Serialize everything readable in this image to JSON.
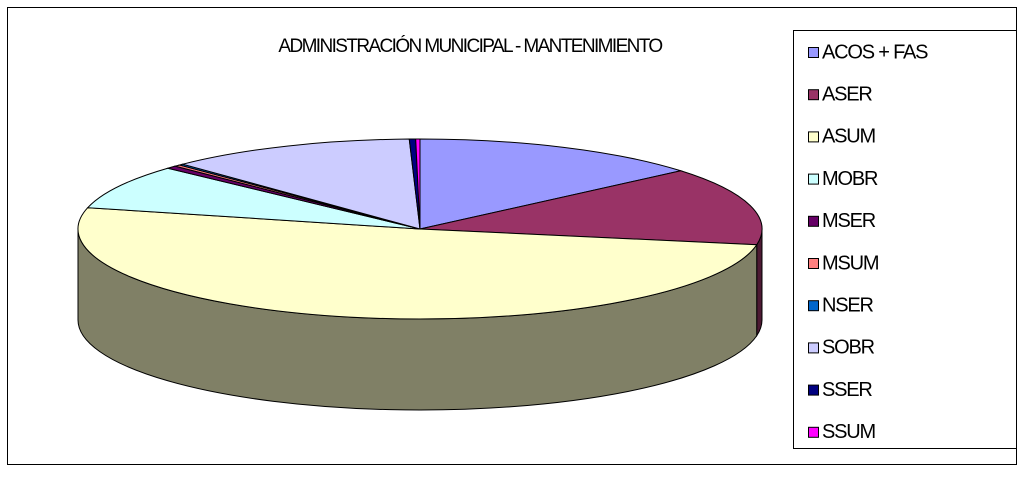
{
  "chart_data": {
    "type": "pie3d",
    "title": "ADMINISTRACIÓN MUNICIPAL - MANTENIMIENTO",
    "categories": [
      "ACOS + FAS",
      "ASER",
      "ASUM",
      "MOBR",
      "MSER",
      "MSUM",
      "NSER",
      "SOBR",
      "SSER",
      "SSUM"
    ],
    "values": [
      13.8,
      14.0,
      51.0,
      8.0,
      0.5,
      0.3,
      0.2,
      11.7,
      0.3,
      0.2
    ],
    "colors": [
      "#9999ff",
      "#993366",
      "#ffffcc",
      "#ccffff",
      "#660066",
      "#ff8080",
      "#0066cc",
      "#ccccff",
      "#000080",
      "#ff00ff"
    ],
    "legend": "right"
  }
}
